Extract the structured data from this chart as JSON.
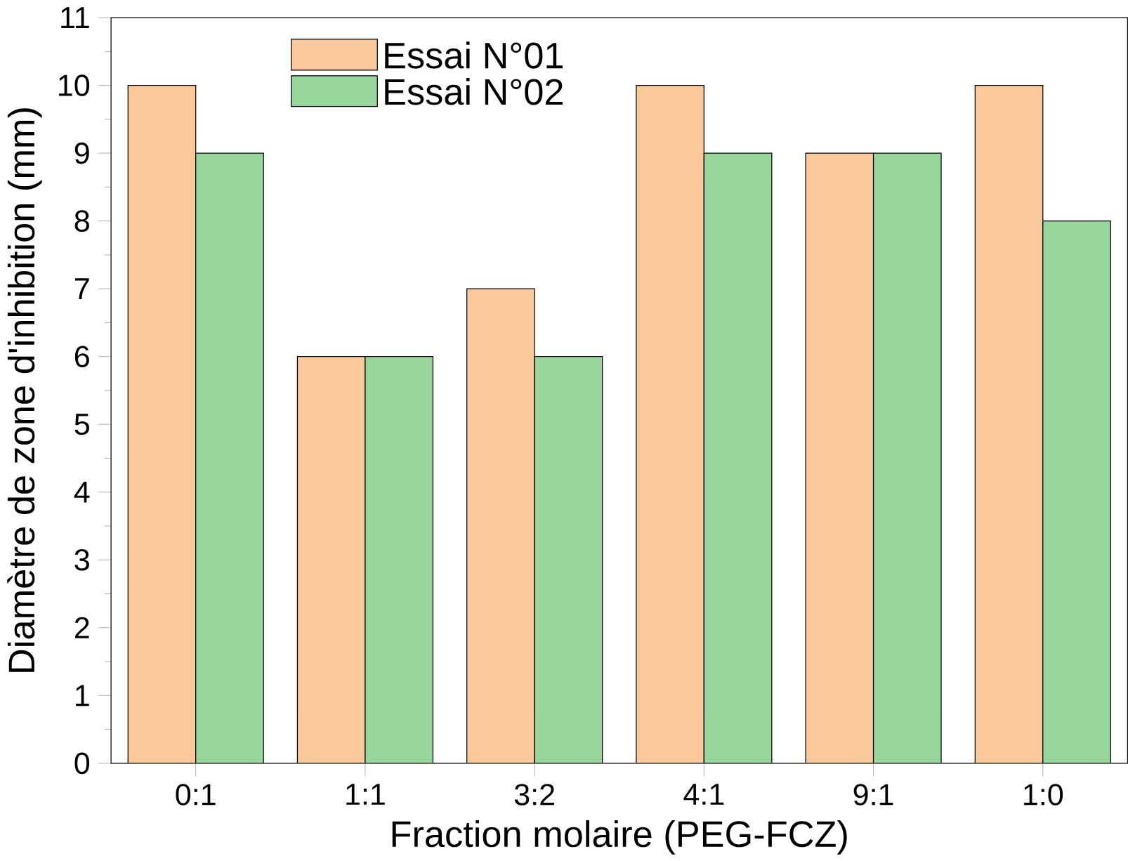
{
  "chart_data": {
    "type": "bar",
    "xlabel": "Fraction molaire (PEG-FCZ)",
    "ylabel": "Diamètre de zone d'inhibition (mm)",
    "categories": [
      "0:1",
      "1:1",
      "3:2",
      "4:1",
      "9:1",
      "1:0"
    ],
    "series": [
      {
        "name": "Essai N°01",
        "color": "#f9c89b",
        "values": [
          10,
          6,
          7,
          10,
          9,
          10
        ]
      },
      {
        "name": "Essai N°02",
        "color": "#98d69b",
        "values": [
          9,
          6,
          6,
          9,
          9,
          8
        ]
      }
    ],
    "ylim": [
      0,
      11
    ],
    "yticks": [
      0,
      1,
      2,
      3,
      4,
      5,
      6,
      7,
      8,
      9,
      10,
      11
    ],
    "legend": "top left",
    "grid": false
  }
}
